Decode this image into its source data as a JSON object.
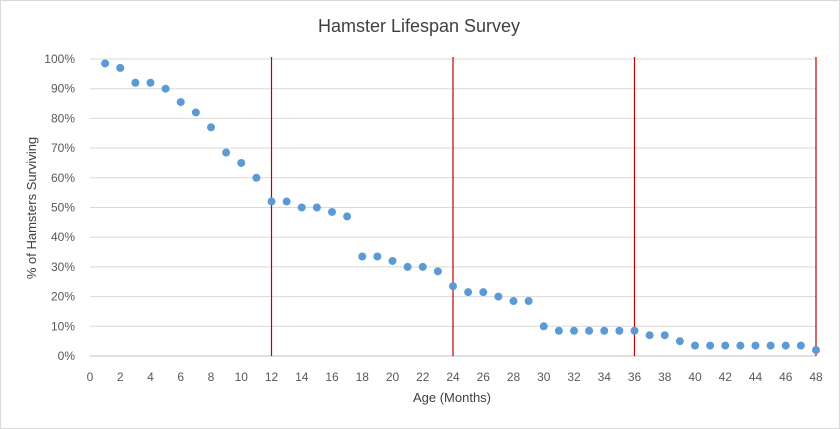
{
  "chart_data": {
    "type": "scatter",
    "title": "Hamster Lifespan Survey",
    "xlabel": "Age (Months)",
    "ylabel": "% of Hamsters Surviving",
    "xlim": [
      0,
      48
    ],
    "ylim": [
      0,
      100
    ],
    "x_ticks": [
      0,
      2,
      4,
      6,
      8,
      10,
      12,
      14,
      16,
      18,
      20,
      22,
      24,
      26,
      28,
      30,
      32,
      34,
      36,
      38,
      40,
      42,
      44,
      46,
      48
    ],
    "y_ticks": [
      0,
      10,
      20,
      30,
      40,
      50,
      60,
      70,
      80,
      90,
      100
    ],
    "y_tick_labels": [
      "0%",
      "10%",
      "20%",
      "30%",
      "40%",
      "50%",
      "60%",
      "70%",
      "80%",
      "90%",
      "100%"
    ],
    "grid": "horizontal",
    "point_color": "#5b9bd5",
    "marker_line_color": "#c00000",
    "vertical_markers": [
      12,
      24,
      36,
      48
    ],
    "points": [
      [
        1,
        98.5
      ],
      [
        2,
        97
      ],
      [
        3,
        92
      ],
      [
        4,
        92
      ],
      [
        5,
        90
      ],
      [
        6,
        85.5
      ],
      [
        7,
        82
      ],
      [
        8,
        77
      ],
      [
        9,
        68.5
      ],
      [
        10,
        65
      ],
      [
        11,
        60
      ],
      [
        12,
        52
      ],
      [
        13,
        52
      ],
      [
        14,
        50
      ],
      [
        15,
        50
      ],
      [
        16,
        48.5
      ],
      [
        17,
        47
      ],
      [
        18,
        33.5
      ],
      [
        19,
        33.5
      ],
      [
        20,
        32
      ],
      [
        21,
        30
      ],
      [
        22,
        30
      ],
      [
        23,
        28.5
      ],
      [
        24,
        23.5
      ],
      [
        25,
        21.5
      ],
      [
        26,
        21.5
      ],
      [
        27,
        20
      ],
      [
        28,
        18.5
      ],
      [
        29,
        18.5
      ],
      [
        30,
        10
      ],
      [
        31,
        8.5
      ],
      [
        32,
        8.5
      ],
      [
        33,
        8.5
      ],
      [
        34,
        8.5
      ],
      [
        35,
        8.5
      ],
      [
        36,
        8.5
      ],
      [
        37,
        7
      ],
      [
        38,
        7
      ],
      [
        39,
        5
      ],
      [
        40,
        3.5
      ],
      [
        41,
        3.5
      ],
      [
        42,
        3.5
      ],
      [
        43,
        3.5
      ],
      [
        44,
        3.5
      ],
      [
        45,
        3.5
      ],
      [
        46,
        3.5
      ],
      [
        47,
        3.5
      ],
      [
        48,
        2
      ]
    ]
  }
}
